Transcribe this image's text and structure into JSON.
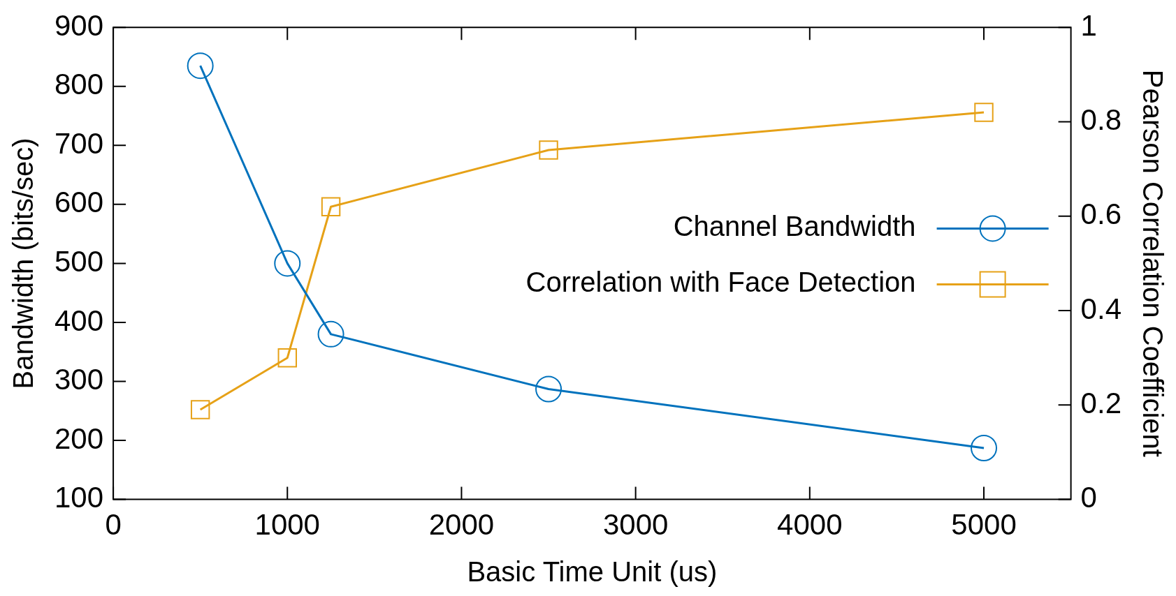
{
  "chart_data": {
    "type": "line",
    "xlabel": "Basic Time Unit (us)",
    "ylabel": "Bandwidth (bits/sec)",
    "y2label": "Pearson Correlation Coefficient",
    "x": [
      500,
      1000,
      1250,
      2500,
      5000
    ],
    "series": [
      {
        "name": "Channel Bandwidth",
        "color": "#0072bd",
        "marker": "circle",
        "values": [
          835,
          500,
          380,
          287,
          187
        ]
      },
      {
        "name": "Correlation with Face Detection",
        "color": "#e6a117",
        "marker": "square",
        "axis": "y2",
        "values": [
          0.19,
          0.3,
          0.62,
          0.74,
          0.82
        ]
      }
    ],
    "xlim": [
      0,
      5500
    ],
    "xticks": [
      0,
      1000,
      2000,
      3000,
      4000,
      5000
    ],
    "ylim": [
      100,
      900
    ],
    "yticks": [
      100,
      200,
      300,
      400,
      500,
      600,
      700,
      800,
      900
    ],
    "y2lim": [
      0,
      1
    ],
    "y2ticks": [
      0,
      0.2,
      0.4,
      0.6,
      0.8,
      1
    ],
    "grid": false,
    "legend": "right",
    "line_style": "solid"
  }
}
